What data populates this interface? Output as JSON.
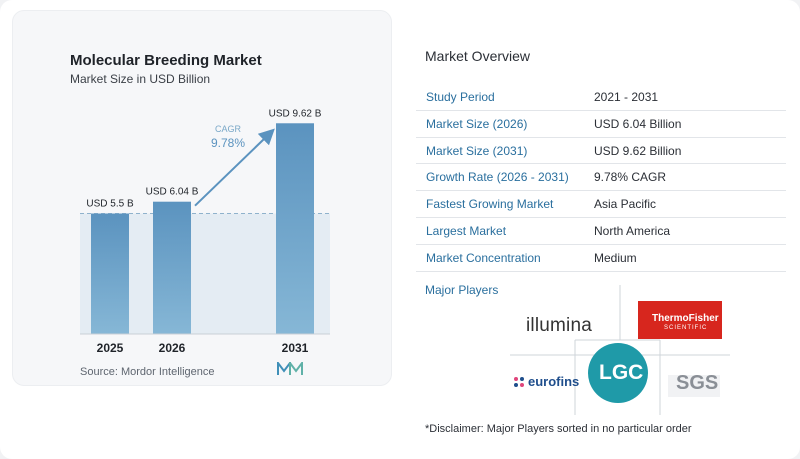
{
  "chart_data": {
    "type": "bar",
    "title": "Molecular Breeding Market",
    "subtitle": "Market Size in USD Billion",
    "categories": [
      "2025",
      "2026",
      "2031"
    ],
    "values": [
      5.5,
      6.04,
      9.62
    ],
    "data_labels": [
      "USD 5.5 B",
      "USD 6.04 B",
      "USD 9.62 B"
    ],
    "cagr_label": "CAGR",
    "cagr_value": "9.78%",
    "ylim": [
      0,
      10.5
    ],
    "bar_color": "#5b93bf",
    "source": "Source:  Mordor Intelligence"
  },
  "overview": {
    "title": "Market Overview",
    "rows": [
      {
        "label": "Study Period",
        "value": "2021 - 2031"
      },
      {
        "label": "Market Size (2026)",
        "value": "USD 6.04 Billion"
      },
      {
        "label": "Market Size (2031)",
        "value": "USD 9.62 Billion"
      },
      {
        "label": "Growth Rate (2026 - 2031)",
        "value": "9.78% CAGR"
      },
      {
        "label": "Fastest Growing Market",
        "value": "Asia Pacific"
      },
      {
        "label": "Largest Market",
        "value": "North America"
      },
      {
        "label": "Market Concentration",
        "value": "Medium"
      }
    ],
    "players_title": "Major Players",
    "players": {
      "illumina": "illumina",
      "thermo_line1": "ThermoFisher",
      "thermo_line2": "SCIENTIFIC",
      "eurofins": "eurofins",
      "lgc": "LGC",
      "sgs": "SGS"
    },
    "disclaimer": "*Disclaimer: Major Players sorted in no particular order"
  }
}
